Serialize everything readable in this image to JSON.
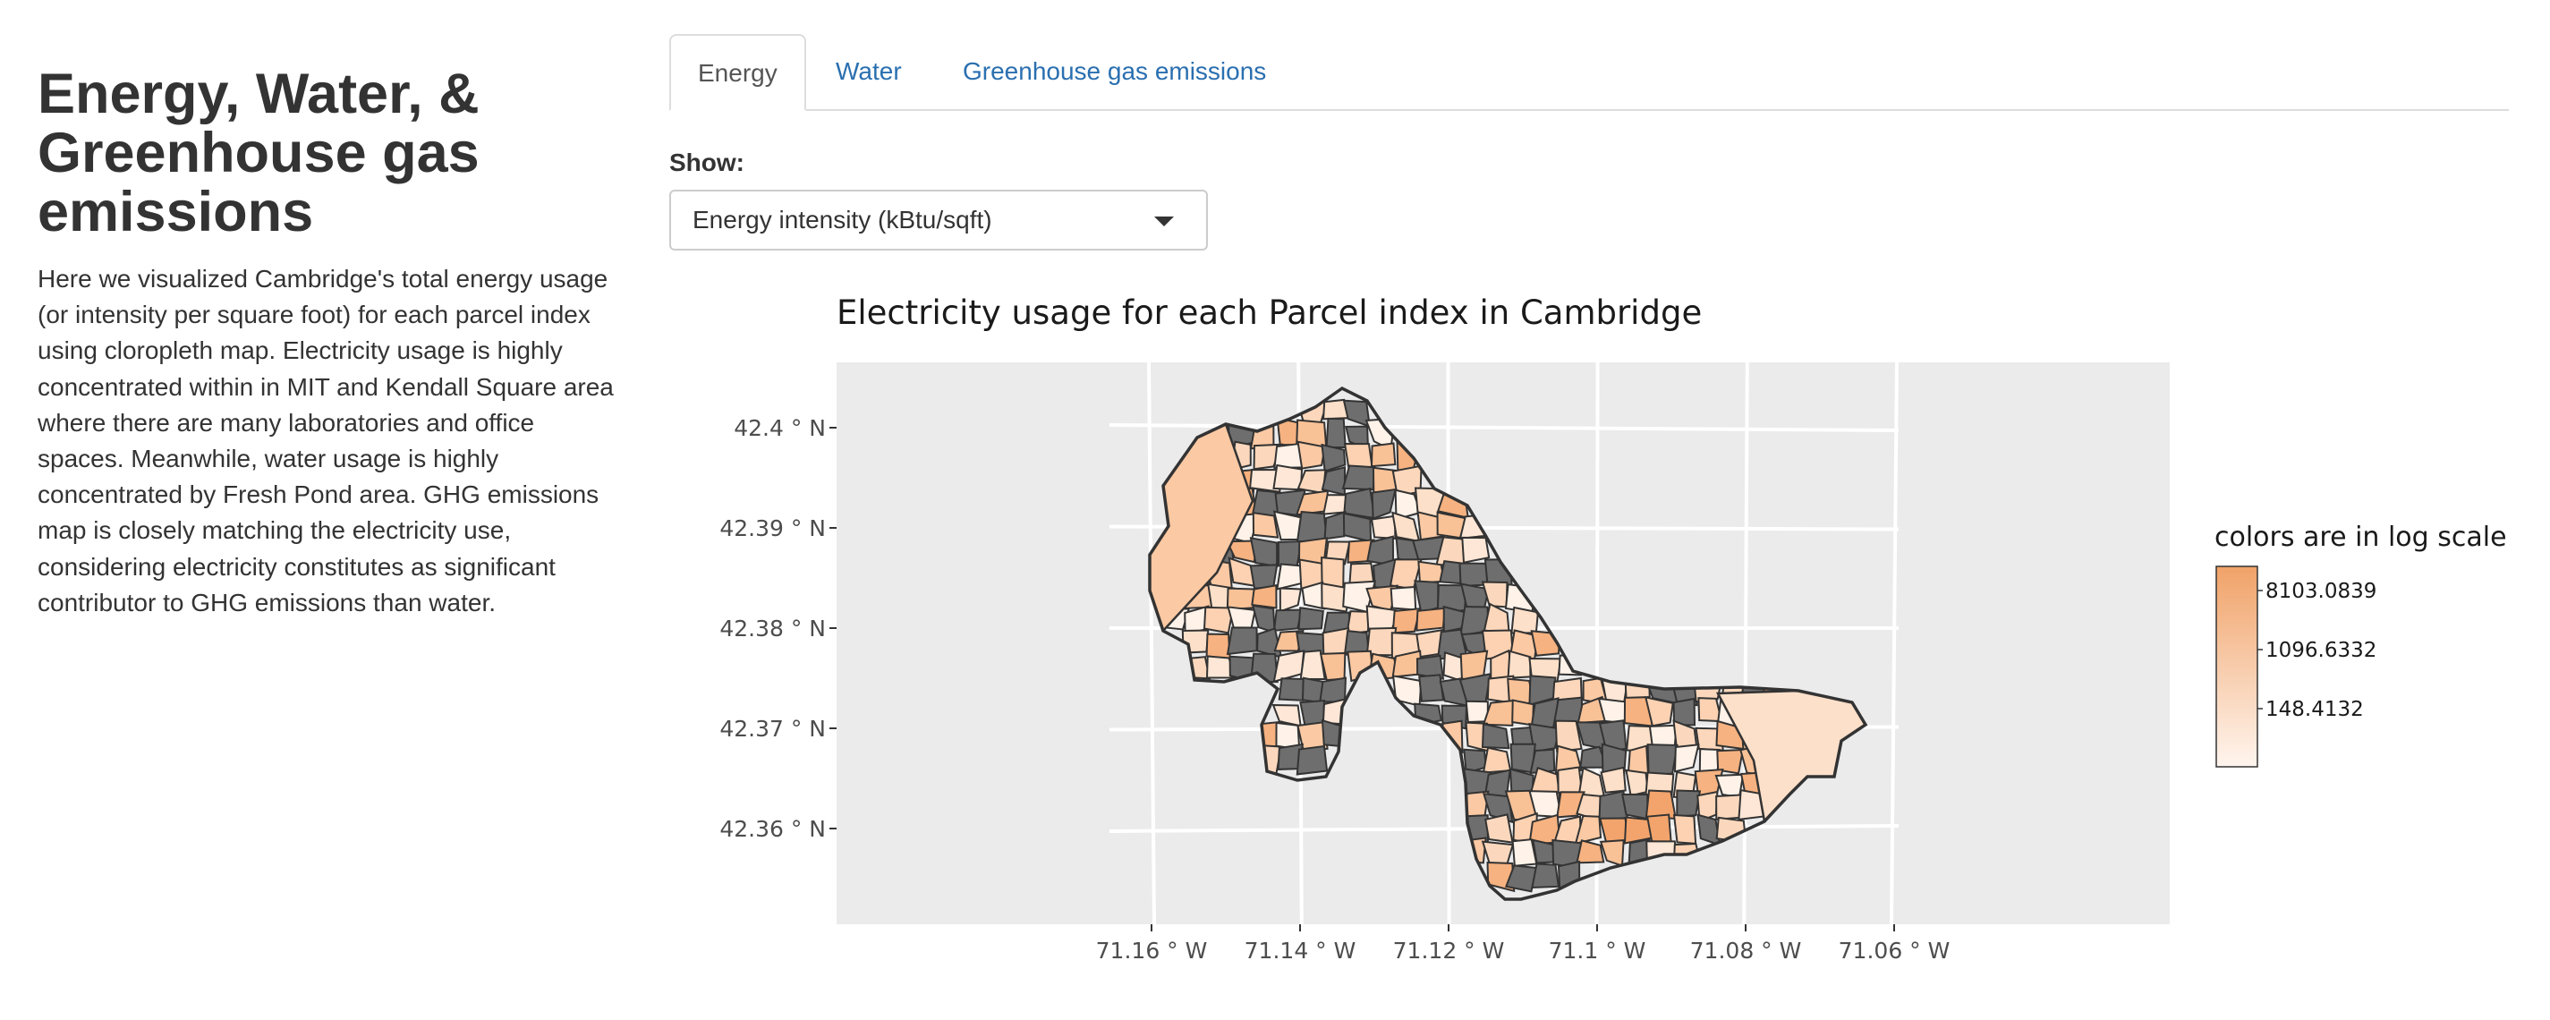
{
  "sidebar": {
    "title": "Energy, Water, & Greenhouse gas emissions",
    "description": "Here we visualized Cambridge's total energy usage (or intensity per square foot) for each parcel index using cloropleth map. Electricity usage is highly concentrated within in MIT and Kendall Square area where there are many laboratories and office spaces. Meanwhile, water usage is highly concentrated by Fresh Pond area. GHG emissions map is closely matching the electricity use, considering electricity constitutes as significant contributor to GHG emissions than water."
  },
  "tabs": [
    {
      "label": "Energy",
      "active": true
    },
    {
      "label": "Water",
      "active": false
    },
    {
      "label": "Greenhouse gas emissions",
      "active": false
    }
  ],
  "show": {
    "label": "Show:",
    "selected": "Energy intensity (kBtu/sqft)"
  },
  "colors": {
    "link": "#2a6fb0",
    "panel": "#ebebeb",
    "missing": "#6e6e6e",
    "low": "#fff5ee",
    "high": "#f0a268"
  },
  "chart_data": {
    "type": "map",
    "title": "Electricity usage for each Parcel index in Cambridge",
    "x_ticks": [
      "71.16 ° W",
      "71.14 ° W",
      "71.12 ° W",
      "71.1 ° W",
      "71.08 ° W",
      "71.06 ° W"
    ],
    "y_ticks": [
      "42.4 ° N",
      "42.39 ° N",
      "42.38 ° N",
      "42.37 ° N",
      "42.36 ° N"
    ],
    "legend": {
      "title": "colors are in log scale",
      "labels": [
        "8103.0839",
        "1096.6332",
        "148.4132"
      ],
      "scale": "log"
    }
  }
}
